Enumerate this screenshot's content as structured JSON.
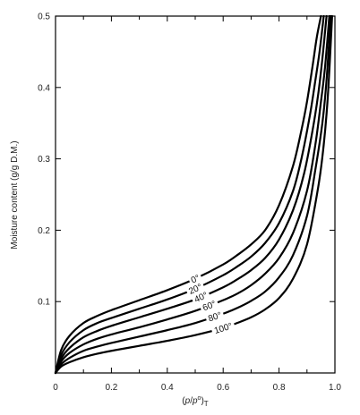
{
  "chart_data": {
    "type": "line",
    "title": "",
    "xlabel": {
      "pre": "(",
      "p": "p",
      "slash": "/",
      "p0": "p",
      "sup": "o",
      "post": ")",
      "sub": "T"
    },
    "ylabel": "Moisture content (g/g D.M.)",
    "xlim": [
      0,
      1.0
    ],
    "ylim": [
      0,
      0.5
    ],
    "x_ticks": [
      "0",
      "0.2",
      "0.4",
      "0.6",
      "0.8",
      "1.0"
    ],
    "y_ticks": [
      "0.1",
      "0.2",
      "0.3",
      "0.4",
      "0.5"
    ],
    "grid": false,
    "series": [
      {
        "name": "0°",
        "label_x": 0.5,
        "x": [
          0,
          0.02,
          0.05,
          0.1,
          0.15,
          0.2,
          0.3,
          0.4,
          0.5,
          0.6,
          0.65,
          0.7,
          0.75,
          0.8,
          0.85,
          0.88,
          0.9,
          0.92,
          0.935,
          0.95
        ],
        "y": [
          0,
          0.032,
          0.052,
          0.07,
          0.08,
          0.088,
          0.102,
          0.116,
          0.132,
          0.152,
          0.165,
          0.18,
          0.2,
          0.235,
          0.29,
          0.34,
          0.38,
          0.43,
          0.47,
          0.5
        ]
      },
      {
        "name": "20°",
        "label_x": 0.5,
        "x": [
          0,
          0.02,
          0.05,
          0.1,
          0.15,
          0.2,
          0.3,
          0.4,
          0.5,
          0.6,
          0.65,
          0.7,
          0.75,
          0.8,
          0.85,
          0.88,
          0.91,
          0.93,
          0.945,
          0.96
        ],
        "y": [
          0,
          0.025,
          0.043,
          0.06,
          0.07,
          0.077,
          0.09,
          0.103,
          0.118,
          0.137,
          0.149,
          0.163,
          0.182,
          0.21,
          0.255,
          0.3,
          0.36,
          0.41,
          0.45,
          0.5
        ]
      },
      {
        "name": "40°",
        "label_x": 0.52,
        "x": [
          0,
          0.02,
          0.05,
          0.1,
          0.15,
          0.2,
          0.3,
          0.4,
          0.5,
          0.6,
          0.65,
          0.7,
          0.75,
          0.8,
          0.85,
          0.89,
          0.92,
          0.94,
          0.955,
          0.97
        ],
        "y": [
          0,
          0.02,
          0.035,
          0.05,
          0.059,
          0.066,
          0.078,
          0.09,
          0.103,
          0.12,
          0.131,
          0.144,
          0.161,
          0.187,
          0.228,
          0.28,
          0.34,
          0.39,
          0.44,
          0.5
        ]
      },
      {
        "name": "60°",
        "label_x": 0.55,
        "x": [
          0,
          0.02,
          0.05,
          0.1,
          0.15,
          0.2,
          0.3,
          0.4,
          0.5,
          0.6,
          0.65,
          0.7,
          0.75,
          0.8,
          0.85,
          0.9,
          0.93,
          0.95,
          0.965,
          0.98
        ],
        "y": [
          0,
          0.016,
          0.028,
          0.04,
          0.048,
          0.054,
          0.064,
          0.075,
          0.087,
          0.102,
          0.111,
          0.123,
          0.139,
          0.161,
          0.196,
          0.255,
          0.32,
          0.38,
          0.43,
          0.5
        ]
      },
      {
        "name": "80°",
        "label_x": 0.57,
        "x": [
          0,
          0.02,
          0.05,
          0.1,
          0.15,
          0.2,
          0.3,
          0.4,
          0.5,
          0.6,
          0.65,
          0.7,
          0.75,
          0.8,
          0.85,
          0.9,
          0.93,
          0.955,
          0.97,
          0.985
        ],
        "y": [
          0,
          0.012,
          0.021,
          0.031,
          0.037,
          0.042,
          0.051,
          0.06,
          0.07,
          0.083,
          0.091,
          0.101,
          0.114,
          0.134,
          0.165,
          0.22,
          0.285,
          0.35,
          0.41,
          0.5
        ]
      },
      {
        "name": "100°",
        "label_x": 0.6,
        "x": [
          0,
          0.02,
          0.05,
          0.1,
          0.15,
          0.2,
          0.3,
          0.4,
          0.5,
          0.6,
          0.65,
          0.7,
          0.75,
          0.8,
          0.85,
          0.9,
          0.94,
          0.96,
          0.975,
          0.99
        ],
        "y": [
          0,
          0.009,
          0.015,
          0.022,
          0.027,
          0.031,
          0.038,
          0.045,
          0.053,
          0.063,
          0.07,
          0.078,
          0.089,
          0.105,
          0.132,
          0.18,
          0.26,
          0.32,
          0.39,
          0.5
        ]
      }
    ]
  }
}
